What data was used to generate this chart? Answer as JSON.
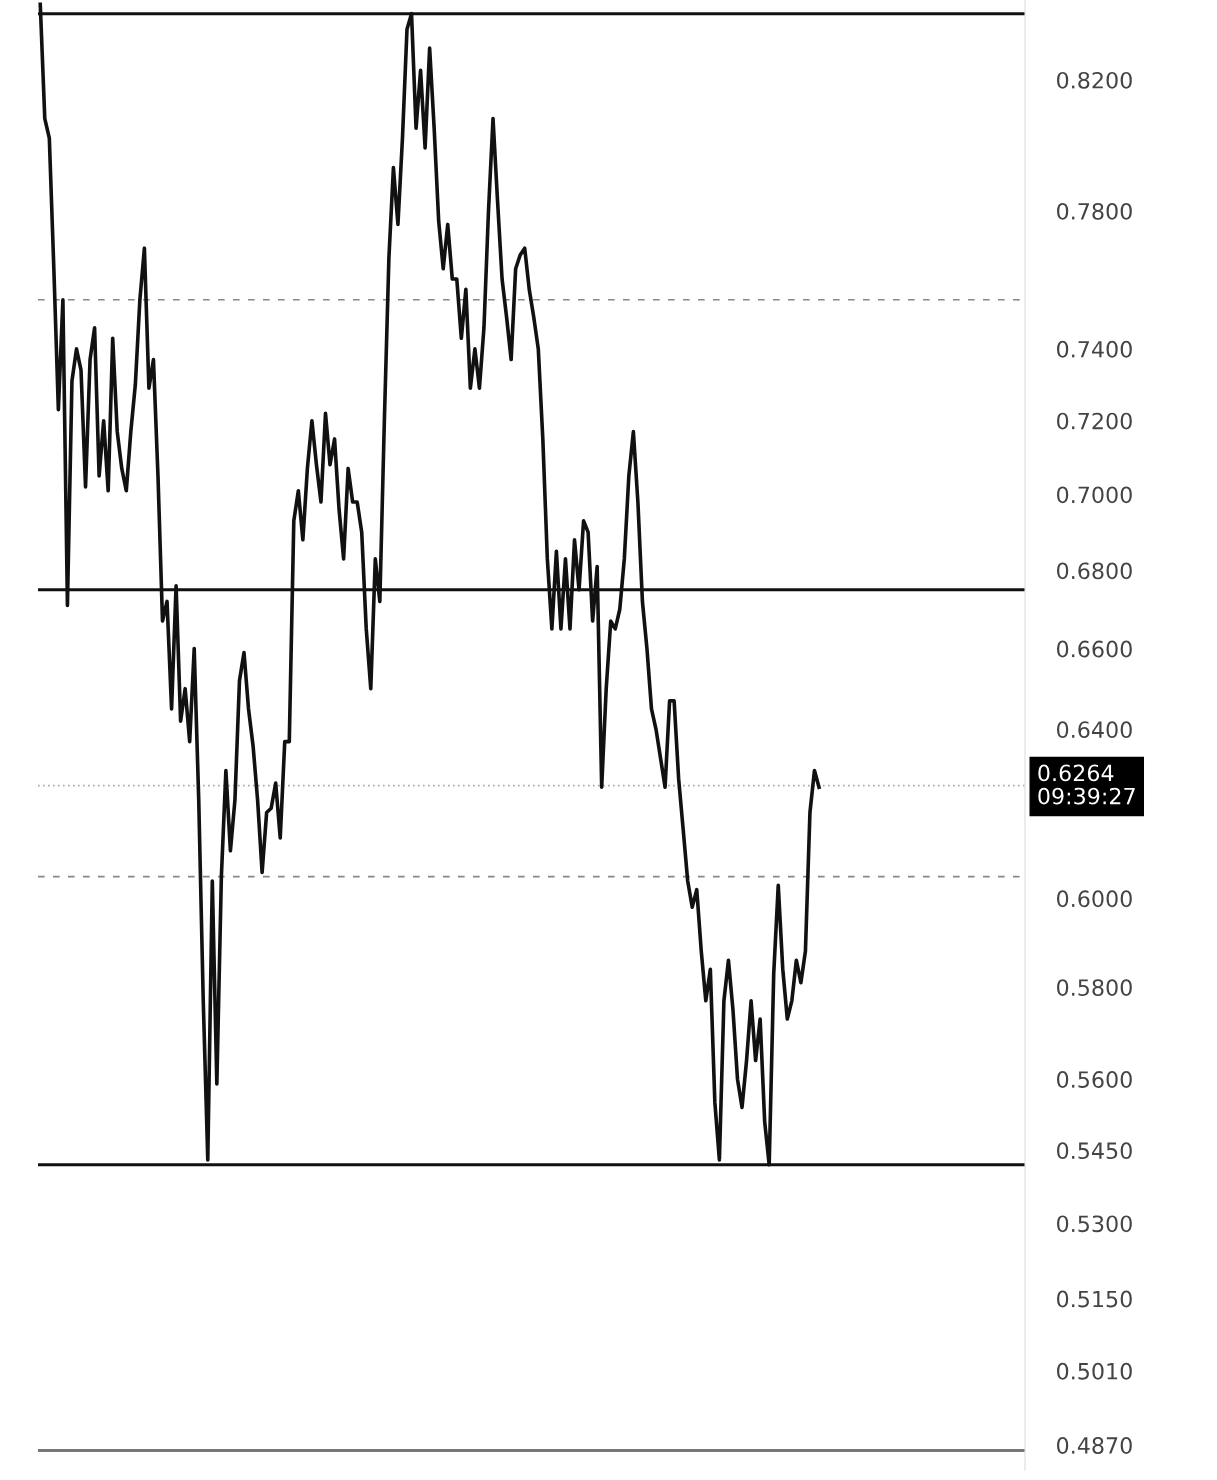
{
  "chart_data": {
    "type": "line",
    "log": true,
    "grid": false,
    "legend": false,
    "tick_labels": "y",
    "marker": "none",
    "line_style": "solid",
    "ylim": [
      0.4824,
      0.8454
    ],
    "yticks": [
      {
        "value": 0.82,
        "label": "0.8200"
      },
      {
        "value": 0.78,
        "label": "0.7800"
      },
      {
        "value": 0.74,
        "label": "0.7400"
      },
      {
        "value": 0.72,
        "label": "0.7200"
      },
      {
        "value": 0.7,
        "label": "0.7000"
      },
      {
        "value": 0.68,
        "label": "0.6800"
      },
      {
        "value": 0.66,
        "label": "0.6600"
      },
      {
        "value": 0.64,
        "label": "0.6400"
      },
      {
        "value": 0.6,
        "label": "0.6000"
      },
      {
        "value": 0.58,
        "label": "0.5800"
      },
      {
        "value": 0.56,
        "label": "0.5600"
      },
      {
        "value": 0.545,
        "label": "0.5450"
      },
      {
        "value": 0.53,
        "label": "0.5300"
      },
      {
        "value": 0.515,
        "label": "0.5150"
      },
      {
        "value": 0.501,
        "label": "0.5010"
      },
      {
        "value": 0.487,
        "label": "0.4870"
      }
    ],
    "categories": [
      null,
      null,
      null,
      null,
      null,
      null,
      null,
      null,
      null,
      null,
      null,
      null,
      null,
      null,
      null,
      null,
      null,
      null,
      null,
      null,
      null,
      null,
      null,
      null,
      null,
      null,
      null,
      null,
      null,
      null,
      null,
      null,
      null,
      null,
      null,
      null,
      null,
      null,
      null,
      null,
      null,
      null,
      null,
      null,
      null,
      null,
      null,
      null,
      null,
      null,
      null,
      null,
      null,
      null,
      null,
      null,
      null,
      null,
      null,
      null,
      null,
      null,
      null,
      null,
      null,
      null,
      null,
      null,
      null,
      null,
      null,
      null,
      null,
      null,
      null,
      null,
      null,
      null,
      null,
      null,
      null,
      null,
      null,
      null,
      null,
      null,
      null,
      null,
      null,
      null,
      null,
      null,
      null,
      null,
      null,
      null,
      null,
      null,
      null,
      null,
      null,
      null,
      null,
      null,
      null,
      null,
      null,
      null,
      null,
      null,
      null,
      null,
      null,
      null,
      null,
      null,
      null,
      null,
      null,
      null,
      null,
      null,
      null,
      null,
      null,
      null,
      null,
      null,
      null,
      null,
      null,
      null,
      null,
      null,
      null,
      null,
      null,
      null,
      null,
      null,
      null,
      null,
      null,
      null,
      null,
      null,
      null,
      null,
      null,
      null,
      null,
      null,
      null,
      null,
      null,
      null,
      null,
      null,
      null,
      null,
      null,
      null,
      null,
      null,
      null,
      null,
      null,
      null,
      null,
      null,
      null,
      null,
      null,
      null,
      null,
      null,
      null,
      null,
      null,
      null,
      null,
      null,
      null,
      null,
      null,
      null,
      null,
      null,
      null,
      null,
      null,
      null,
      null,
      null,
      null,
      null,
      null,
      null,
      null,
      null,
      null,
      null,
      null,
      null,
      null,
      null,
      null,
      null,
      null,
      null,
      null,
      null,
      null,
      null,
      null,
      null,
      null,
      null
    ],
    "series": [
      {
        "color": "#111111",
        "values": [
          0.844,
          0.808,
          0.802,
          0.763,
          0.723,
          0.754,
          0.671,
          0.731,
          0.74,
          0.734,
          0.702,
          0.737,
          0.746,
          0.705,
          0.72,
          0.701,
          0.743,
          0.717,
          0.707,
          0.701,
          0.717,
          0.73,
          0.754,
          0.769,
          0.729,
          0.737,
          0.705,
          0.667,
          0.672,
          0.645,
          0.676,
          0.642,
          0.65,
          0.637,
          0.66,
          0.623,
          0.577,
          0.543,
          0.604,
          0.559,
          0.605,
          0.63,
          0.611,
          0.623,
          0.652,
          0.659,
          0.645,
          0.636,
          0.623,
          0.606,
          0.62,
          0.621,
          0.627,
          0.614,
          0.637,
          0.637,
          0.693,
          0.701,
          0.688,
          0.707,
          0.72,
          0.708,
          0.698,
          0.722,
          0.708,
          0.715,
          0.696,
          0.683,
          0.707,
          0.698,
          0.698,
          0.69,
          0.665,
          0.65,
          0.683,
          0.672,
          0.72,
          0.766,
          0.793,
          0.776,
          0.802,
          0.836,
          0.841,
          0.805,
          0.823,
          0.799,
          0.83,
          0.805,
          0.777,
          0.763,
          0.776,
          0.76,
          0.76,
          0.743,
          0.757,
          0.729,
          0.74,
          0.729,
          0.746,
          0.78,
          0.808,
          0.783,
          0.76,
          0.749,
          0.737,
          0.763,
          0.767,
          0.769,
          0.757,
          0.749,
          0.74,
          0.715,
          0.683,
          0.665,
          0.685,
          0.665,
          0.683,
          0.665,
          0.688,
          0.675,
          0.693,
          0.69,
          0.667,
          0.681,
          0.626,
          0.65,
          0.667,
          0.665,
          0.67,
          0.683,
          0.705,
          0.717,
          0.698,
          0.672,
          0.66,
          0.645,
          0.64,
          0.633,
          0.626,
          0.647,
          0.647,
          0.628,
          0.616,
          0.604,
          0.598,
          0.602,
          0.588,
          0.577,
          0.584,
          0.555,
          0.543,
          0.577,
          0.586,
          0.575,
          0.56,
          0.554,
          0.564,
          0.577,
          0.564,
          0.573,
          0.551,
          0.542,
          0.583,
          0.603,
          0.584,
          0.573,
          0.577,
          0.586,
          0.581,
          0.588,
          0.62,
          0.63,
          0.626,
          null,
          null,
          null,
          null,
          null,
          null,
          null,
          null,
          null,
          null,
          null,
          null,
          null,
          null,
          null,
          null,
          null,
          null,
          null,
          null,
          null,
          null,
          null,
          null,
          null,
          null,
          null,
          null,
          null,
          null,
          null,
          null,
          null,
          null,
          null,
          null,
          null,
          null,
          null,
          null,
          null,
          null,
          null,
          null,
          null
        ]
      }
    ],
    "ref_lines": [
      {
        "axis": "y",
        "value": 0.841,
        "color": "#111111",
        "line_style": "solid"
      },
      {
        "axis": "y",
        "value": 0.754,
        "color": "#888888",
        "line_style": "dashed"
      },
      {
        "axis": "y",
        "value": 0.675,
        "color": "#111111",
        "line_style": "solid"
      },
      {
        "axis": "y",
        "value": 0.6264,
        "color": "#aaaaaa",
        "line_style": "dotted"
      },
      {
        "axis": "y",
        "value": 0.605,
        "color": "#888888",
        "line_style": "dashed"
      },
      {
        "axis": "y",
        "value": 0.542,
        "color": "#111111",
        "line_style": "solid"
      },
      {
        "axis": "y",
        "value": 0.486,
        "color": "#777777",
        "line_style": "solid"
      }
    ],
    "annotations": [
      "0.6264\n09:39:27"
    ]
  }
}
